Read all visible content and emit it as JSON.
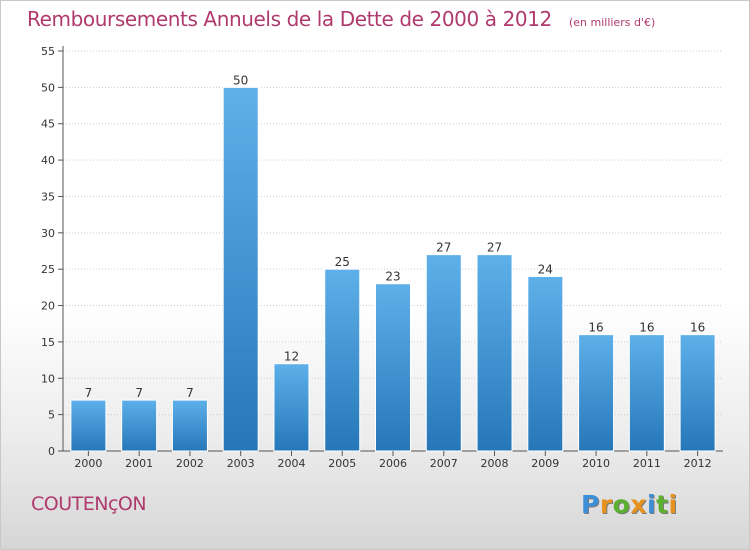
{
  "title": "Remboursements Annuels de la Dette de 2000 à 2012",
  "subtitle": "(en milliers d'€)",
  "town": "COUTENçON",
  "brand": {
    "text": "Proxiti",
    "letter_colors": [
      "#3a8fd8",
      "#e8921e",
      "#5cb030",
      "#e8921e",
      "#3a8fd8",
      "#5cb030",
      "#e8921e"
    ]
  },
  "colors": {
    "bar_top": "#5eb0ea",
    "bar_bottom": "#2677b8",
    "axis": "#555555",
    "grid": "#cccccc"
  },
  "chart_data": {
    "type": "bar",
    "categories": [
      "2000",
      "2001",
      "2002",
      "2003",
      "2004",
      "2005",
      "2006",
      "2007",
      "2008",
      "2009",
      "2010",
      "2011",
      "2012"
    ],
    "values": [
      7,
      7,
      7,
      50,
      12,
      25,
      23,
      27,
      27,
      24,
      16,
      16,
      16
    ],
    "ylim": [
      0,
      55
    ],
    "yticks": [
      0,
      5,
      10,
      15,
      20,
      25,
      30,
      35,
      40,
      45,
      50,
      55
    ],
    "grid": "horizontal dotted"
  }
}
